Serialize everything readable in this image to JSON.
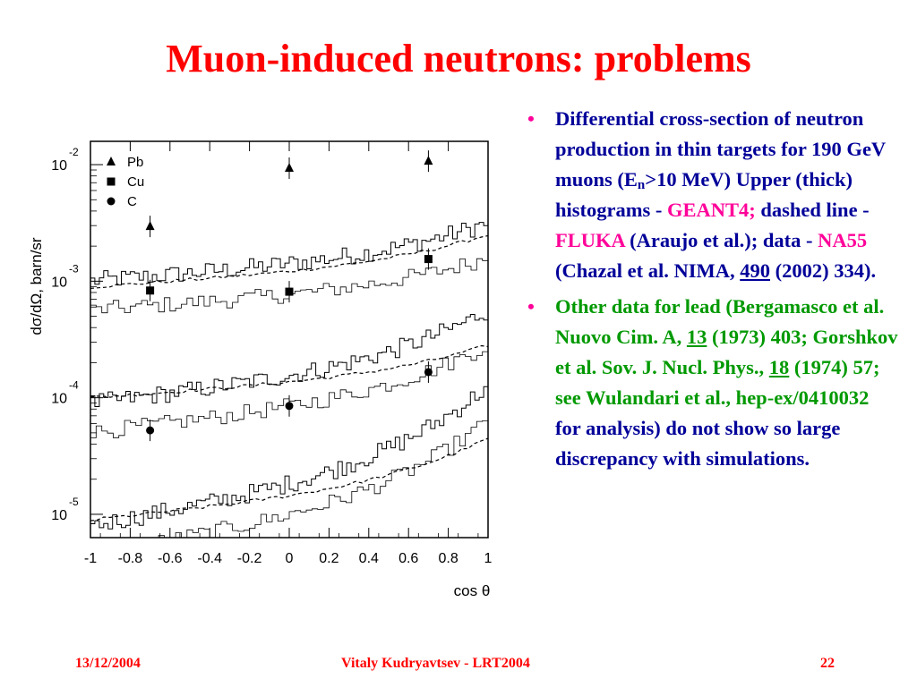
{
  "slide": {
    "title": "Muon-induced neutrons: problems",
    "footer": {
      "date": "13/12/2004",
      "center": "Vitaly Kudryavtsev - LRT2004",
      "page": "22"
    }
  },
  "bullets": [
    {
      "runs": [
        {
          "t": "Differential cross-section of neutron production in thin targets for 190 GeV muons (E"
        },
        {
          "t": "n",
          "sub": true
        },
        {
          "t": ">10 MeV) Upper (thick) histograms - "
        },
        {
          "t": "GEANT4;",
          "c": "pink"
        },
        {
          "t": " dashed line - "
        },
        {
          "t": "FLUKA",
          "c": "pink"
        },
        {
          "t": " (Araujo et al.); data - "
        },
        {
          "t": "NA55",
          "c": "pink"
        },
        {
          "t": " (Chazal et al. NIMA, "
        },
        {
          "t": "490",
          "u": true
        },
        {
          "t": " (2002) 334)."
        }
      ]
    },
    {
      "runs": [
        {
          "t": "Other data for lead (Bergamasco et al. Nuovo Cim. A, ",
          "c": "grn"
        },
        {
          "t": "13",
          "c": "grn",
          "u": true
        },
        {
          "t": " (1973) 403; Gorshkov et al. Sov. J. Nucl. Phys., ",
          "c": "grn"
        },
        {
          "t": "18",
          "c": "grn",
          "u": true
        },
        {
          "t": " (1974) 57; see ",
          "c": "grn"
        },
        {
          "t": "Wulandari et al., hep-ex/0410032",
          "c": "grn"
        },
        {
          "t": " for analysis) do not show so large discrepancy with simulations."
        }
      ]
    }
  ],
  "chart_data": {
    "type": "scatter",
    "title": "",
    "xlabel": "cos θ",
    "ylabel": "dσ/dΩ, barn/sr",
    "xlim": [
      -1,
      1
    ],
    "y_log": true,
    "ylim_log10": [
      -5.2,
      -1.8
    ],
    "xticks": [
      "-1",
      "-0.8",
      "-0.6",
      "-0.4",
      "-0.2",
      "0",
      "0.2",
      "0.4",
      "0.6",
      "0.8",
      "1"
    ],
    "yticks": [
      {
        "base": "10",
        "exp": "-2",
        "log10": -2
      },
      {
        "base": "10",
        "exp": "-3",
        "log10": -3
      },
      {
        "base": "10",
        "exp": "-4",
        "log10": -4
      },
      {
        "base": "10",
        "exp": "-5",
        "log10": -5
      }
    ],
    "legend_position": "top-left",
    "series": [
      {
        "name": "Pb",
        "marker": "triangle",
        "data": [
          [
            -0.7,
            -2.53
          ],
          [
            0,
            -2.03
          ],
          [
            0.7,
            -1.97
          ]
        ],
        "geant4": [
          -3.0,
          -2.5
        ],
        "fluka": [
          -3.05,
          -2.6
        ]
      },
      {
        "name": "Cu",
        "marker": "square",
        "data": [
          [
            -0.7,
            -3.08
          ],
          [
            0,
            -3.09
          ],
          [
            0.7,
            -2.81
          ]
        ],
        "geant4": [
          -4.05,
          -3.25
        ],
        "fluka": [
          -4.0,
          -3.55
        ]
      },
      {
        "name": "C",
        "marker": "circle",
        "data": [
          [
            -0.7,
            -4.28
          ],
          [
            0,
            -4.07
          ],
          [
            0.7,
            -3.78
          ]
        ],
        "geant4": [
          -5.1,
          -3.9
        ],
        "fluka": [
          -5.05,
          -4.35
        ]
      }
    ]
  }
}
